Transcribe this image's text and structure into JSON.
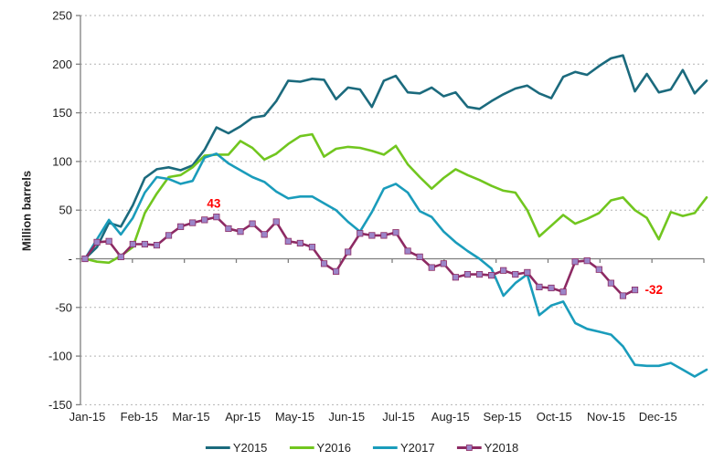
{
  "chart_data": {
    "type": "line",
    "title": "",
    "ylabel": "Million barrels",
    "xlabel": "",
    "grid": "horizontal-dotted",
    "legend_position": "bottom",
    "x_axis": {
      "tick_labels": [
        "Jan-15",
        "Feb-15",
        "Mar-15",
        "Apr-15",
        "May-15",
        "Jun-15",
        "Jul-15",
        "Aug-15",
        "Sep-15",
        "Oct-15",
        "Nov-15",
        "Dec-15"
      ],
      "points_per_month": 4.33,
      "granularity": "weekly"
    },
    "y_axis": {
      "min": -150,
      "max": 250,
      "step": 50,
      "tick_values": [
        250,
        200,
        150,
        100,
        50,
        0,
        -50,
        -100,
        -150
      ],
      "tick_labels": [
        "250",
        "200",
        "150",
        "100",
        "50",
        "-",
        "-50",
        "-100",
        "-150"
      ]
    },
    "series": [
      {
        "name": "Y2015",
        "color": "#1B6A7D",
        "marker": "none",
        "values": [
          0,
          12,
          37,
          33,
          55,
          83,
          92,
          94,
          91,
          96,
          112,
          135,
          129,
          136,
          145,
          147,
          162,
          183,
          182,
          185,
          184,
          164,
          176,
          174,
          156,
          183,
          188,
          171,
          170,
          176,
          167,
          171,
          156,
          154,
          162,
          169,
          175,
          178,
          170,
          165,
          187,
          192,
          189,
          198,
          206,
          209,
          172,
          190,
          171,
          174,
          194,
          170,
          183
        ]
      },
      {
        "name": "Y2016",
        "color": "#71C61F",
        "marker": "none",
        "values": [
          0,
          -3,
          -4,
          3,
          12,
          47,
          67,
          84,
          86,
          94,
          106,
          107,
          107,
          121,
          114,
          102,
          108,
          118,
          126,
          128,
          105,
          113,
          115,
          114,
          111,
          107,
          116,
          97,
          84,
          72,
          83,
          92,
          86,
          81,
          75,
          70,
          68,
          50,
          23,
          34,
          45,
          36,
          41,
          47,
          60,
          63,
          50,
          42,
          20,
          48,
          44,
          47,
          63
        ]
      },
      {
        "name": "Y2017",
        "color": "#1A9CBB",
        "marker": "none",
        "values": [
          0,
          20,
          40,
          25,
          42,
          68,
          84,
          82,
          77,
          80,
          104,
          108,
          98,
          91,
          84,
          79,
          69,
          62,
          64,
          64,
          57,
          50,
          38,
          28,
          48,
          72,
          77,
          68,
          49,
          43,
          28,
          17,
          8,
          0,
          -10,
          -38,
          -25,
          -16,
          -58,
          -48,
          -44,
          -66,
          -72,
          -75,
          -78,
          -90,
          -109,
          -110,
          -110,
          -107,
          -114,
          -121,
          -114
        ]
      },
      {
        "name": "Y2018",
        "color": "#8D2A63",
        "marker": "square",
        "marker_color": "#9C85C9",
        "values": [
          0,
          17,
          18,
          2,
          15,
          15,
          14,
          24,
          33,
          37,
          40,
          43,
          31,
          28,
          36,
          25,
          38,
          18,
          16,
          12,
          -5,
          -13,
          7,
          26,
          24,
          24,
          27,
          8,
          2,
          -9,
          -5,
          -19,
          -16,
          -16,
          -17,
          -12,
          -16,
          -14,
          -29,
          -30,
          -34,
          -3,
          -2,
          -11,
          -25,
          -38,
          -32
        ]
      }
    ],
    "annotations": [
      {
        "text": "43",
        "series_index": 3,
        "point_index": 11,
        "placement": "above",
        "color": "#FF0000"
      },
      {
        "text": "-32",
        "series_index": 3,
        "point_index": 46,
        "placement": "right",
        "color": "#FF0000"
      }
    ],
    "colors": {
      "axis_line": "#7f7f7f",
      "gridline": "#b3b3b3",
      "tick_text": "#1f1f1f",
      "annotation": "#FF0000"
    }
  }
}
